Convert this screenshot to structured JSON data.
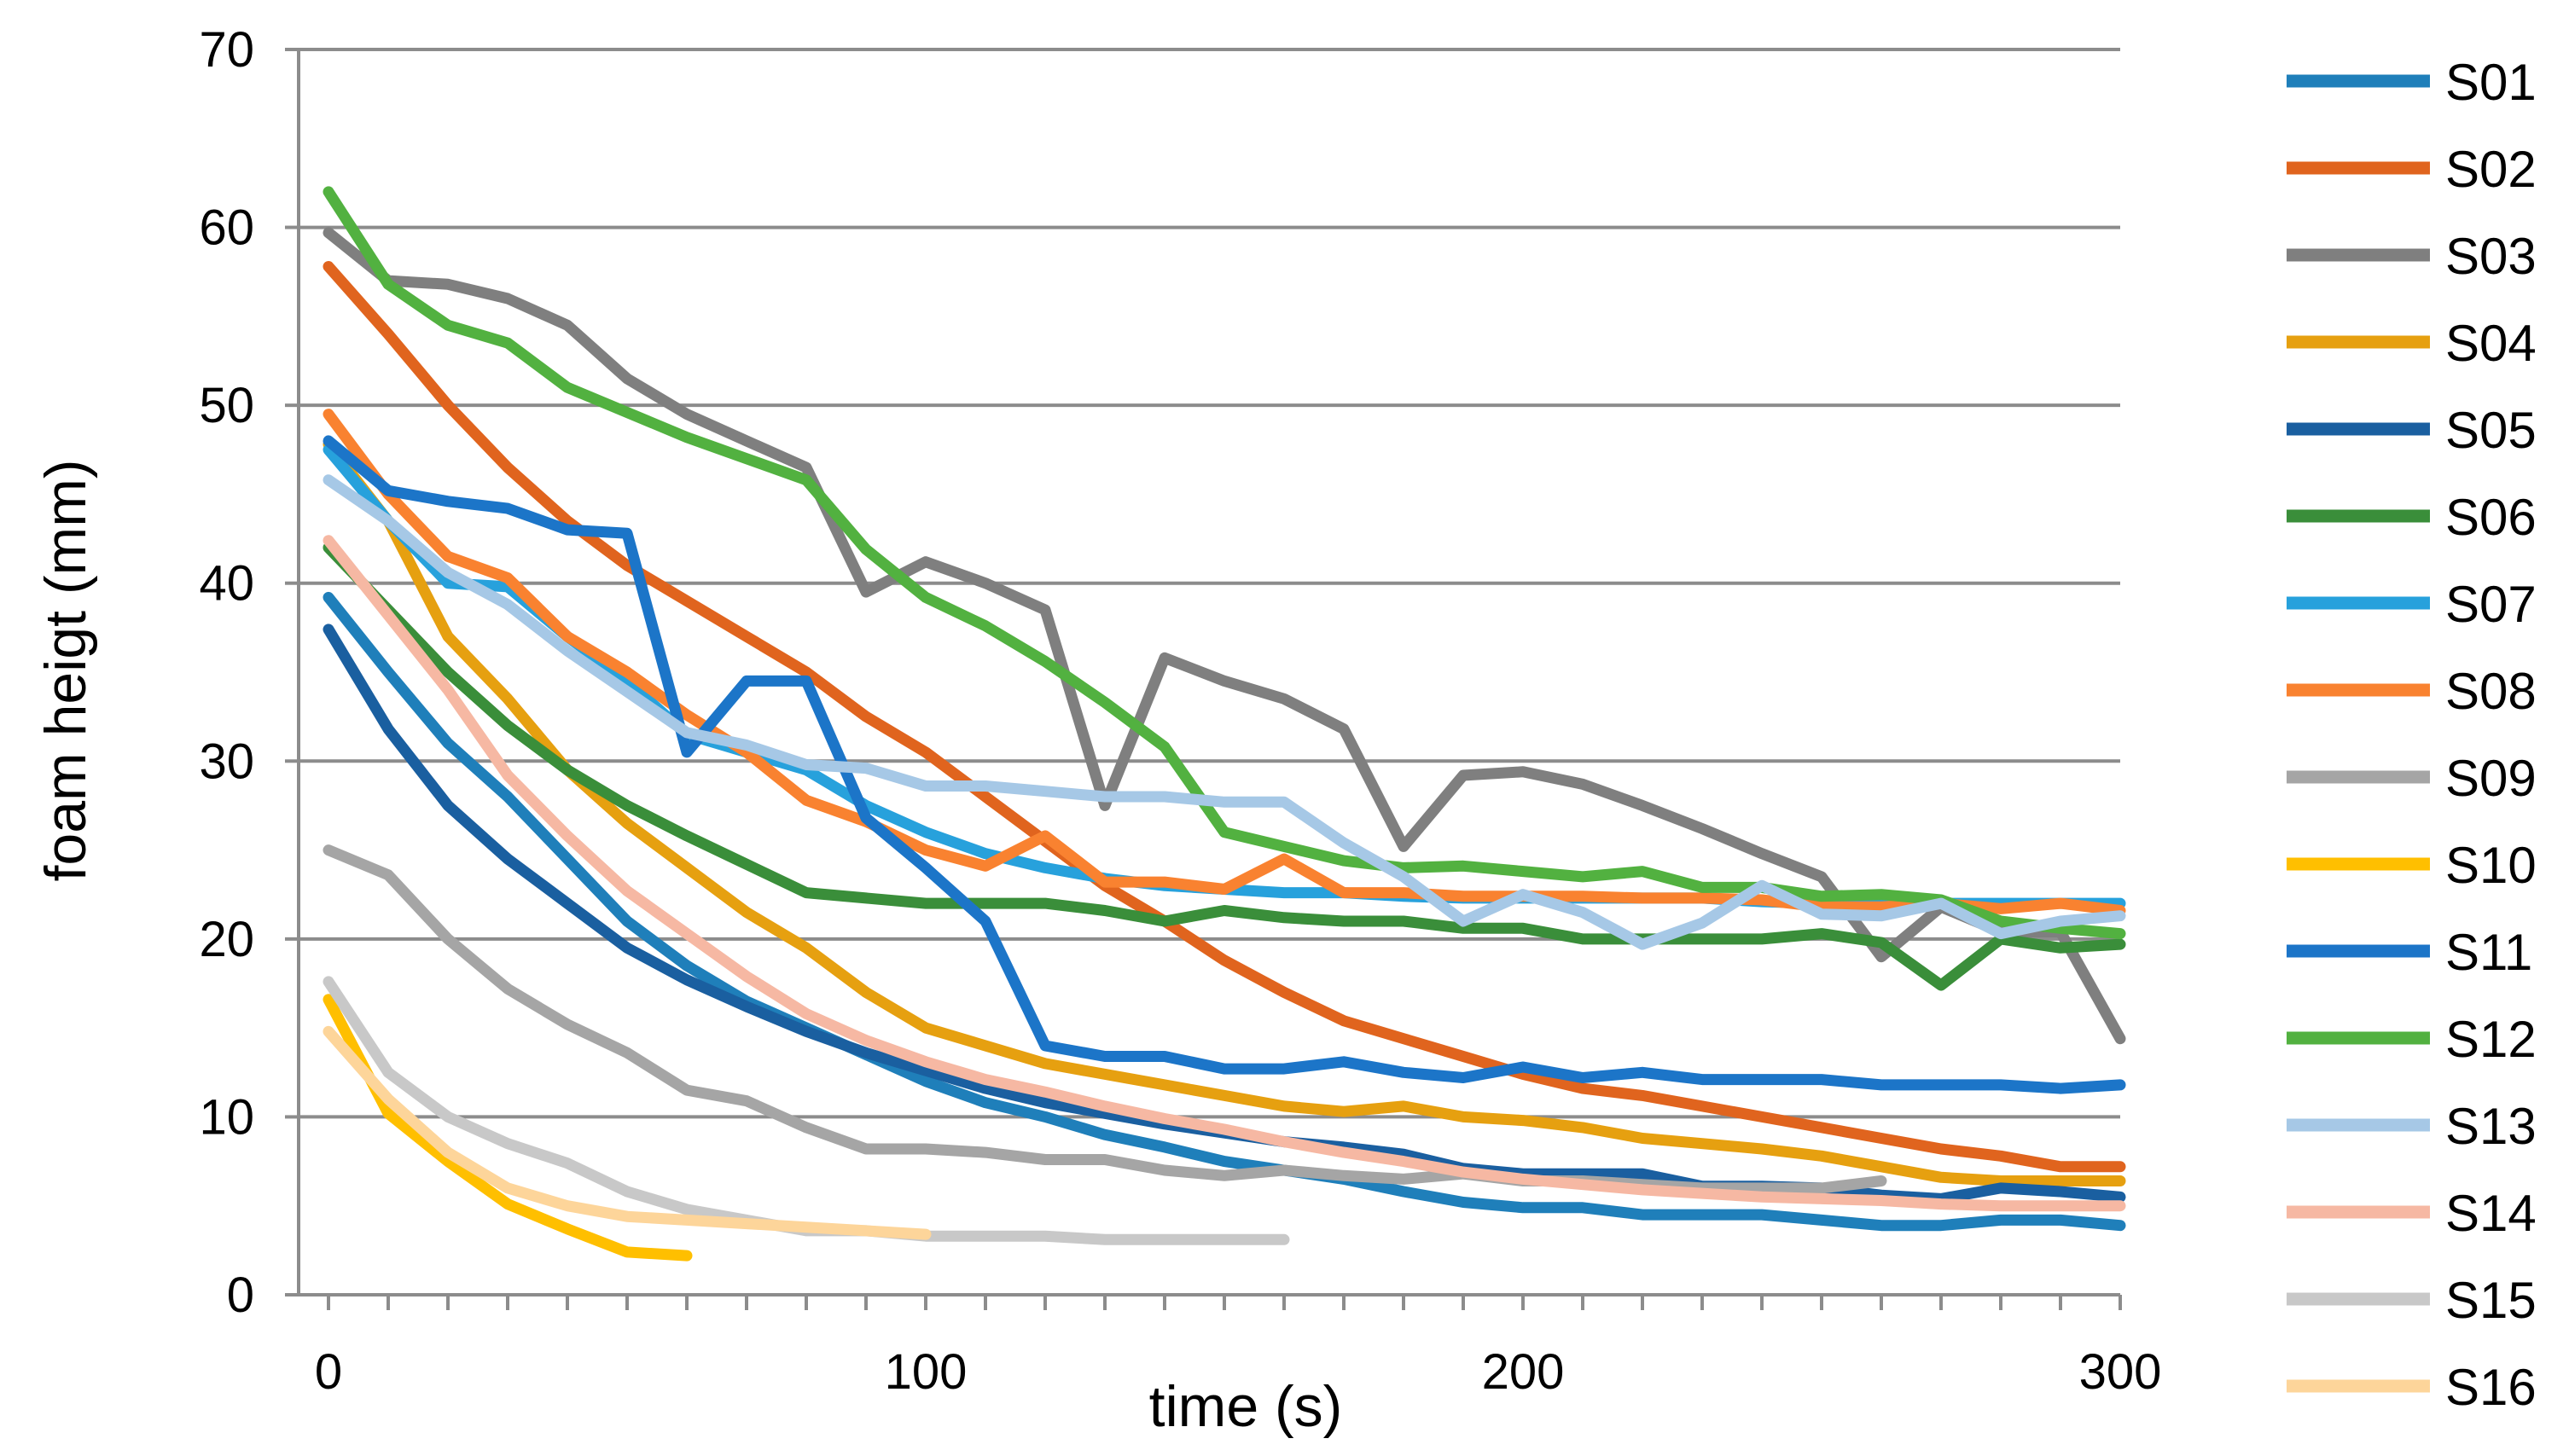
{
  "chart_data": {
    "type": "line",
    "title": "",
    "xlabel": "time (s)",
    "ylabel": "foam heigt (mm)",
    "xlim": [
      -5,
      300
    ],
    "ylim": [
      0,
      70
    ],
    "xticks": [
      0,
      100,
      200,
      300
    ],
    "yticks": [
      0,
      10,
      20,
      30,
      40,
      50,
      60,
      70
    ],
    "grid": "horizontal",
    "legend": "right",
    "series": [
      {
        "name": "S01",
        "color": "#1f7fba",
        "x": [
          0,
          10,
          20,
          30,
          40,
          50,
          60,
          70,
          80,
          90,
          100,
          110,
          120,
          130,
          140,
          150,
          160,
          170,
          180,
          190,
          200,
          210,
          220,
          230,
          240,
          250,
          260,
          270,
          280,
          290,
          300
        ],
        "y": [
          39.2,
          35,
          31,
          28,
          24.5,
          21,
          18.5,
          16.5,
          15,
          13.5,
          12,
          10.8,
          10,
          9,
          8.3,
          7.5,
          7,
          6.5,
          5.8,
          5.2,
          4.9,
          4.9,
          4.5,
          4.5,
          4.5,
          4.2,
          3.9,
          3.9,
          4.2,
          4.2,
          3.9
        ]
      },
      {
        "name": "S02",
        "color": "#e0641e",
        "x": [
          0,
          10,
          20,
          30,
          40,
          50,
          60,
          70,
          80,
          90,
          100,
          110,
          120,
          130,
          140,
          150,
          160,
          170,
          180,
          190,
          200,
          210,
          220,
          230,
          240,
          250,
          260,
          270,
          280,
          290,
          300
        ],
        "y": [
          57.8,
          54,
          50,
          46.5,
          43.5,
          41,
          39,
          37,
          35,
          32.5,
          30.5,
          28,
          25.5,
          23,
          21,
          18.8,
          17,
          15.4,
          14.4,
          13.4,
          12.4,
          11.6,
          11.2,
          10.6,
          10,
          9.4,
          8.8,
          8.2,
          7.8,
          7.2,
          7.2
        ]
      },
      {
        "name": "S03",
        "color": "#7f7f7f",
        "x": [
          0,
          10,
          20,
          30,
          40,
          50,
          60,
          70,
          80,
          90,
          100,
          110,
          120,
          130,
          140,
          150,
          160,
          170,
          180,
          190,
          200,
          210,
          220,
          230,
          240,
          250,
          260,
          270,
          280,
          290,
          300
        ],
        "y": [
          59.7,
          57,
          56.8,
          56,
          54.5,
          51.5,
          49.5,
          48,
          46.5,
          39.5,
          41.2,
          40,
          38.5,
          27.5,
          35.8,
          34.5,
          33.5,
          31.8,
          25.2,
          29.2,
          29.4,
          28.7,
          27.5,
          26.2,
          24.8,
          23.5,
          19,
          21.8,
          20.4,
          20.4,
          14.4
        ]
      },
      {
        "name": "S04",
        "color": "#e6a010",
        "x": [
          0,
          10,
          20,
          30,
          40,
          50,
          60,
          70,
          80,
          90,
          100,
          110,
          120,
          130,
          140,
          150,
          160,
          170,
          180,
          190,
          200,
          210,
          220,
          230,
          240,
          250,
          260,
          270,
          280,
          290,
          300
        ],
        "y": [
          47.8,
          43.5,
          37,
          33.5,
          29.5,
          26.5,
          24,
          21.5,
          19.5,
          17,
          15,
          14,
          13,
          12.4,
          11.8,
          11.2,
          10.6,
          10.3,
          10.6,
          10,
          9.8,
          9.4,
          8.8,
          8.5,
          8.2,
          7.8,
          7.2,
          6.6,
          6.4,
          6.4,
          6.4
        ]
      },
      {
        "name": "S05",
        "color": "#1a5fa0",
        "x": [
          0,
          10,
          20,
          30,
          40,
          50,
          60,
          70,
          80,
          90,
          100,
          110,
          120,
          130,
          140,
          150,
          160,
          170,
          180,
          190,
          200,
          210,
          220,
          230,
          240,
          250,
          260,
          270,
          280,
          290,
          300
        ],
        "y": [
          37.4,
          31.8,
          27.5,
          24.5,
          22,
          19.5,
          17.7,
          16.2,
          14.8,
          13.6,
          12.6,
          11.6,
          10.8,
          10.2,
          9.6,
          9.1,
          8.6,
          8.3,
          7.9,
          7.1,
          6.8,
          6.8,
          6.8,
          6.1,
          6.1,
          6,
          5.6,
          5.4,
          6,
          5.8,
          5.5
        ]
      },
      {
        "name": "S06",
        "color": "#3a8e3a",
        "x": [
          0,
          10,
          20,
          30,
          40,
          50,
          60,
          70,
          80,
          90,
          100,
          110,
          120,
          130,
          140,
          150,
          160,
          170,
          180,
          190,
          200,
          210,
          220,
          230,
          240,
          250,
          260,
          270,
          280,
          290,
          300
        ],
        "y": [
          42,
          38.5,
          35,
          32,
          29.5,
          27.5,
          25.8,
          24.2,
          22.6,
          22.3,
          22,
          22,
          22,
          21.6,
          21,
          21.6,
          21.2,
          21,
          21,
          20.6,
          20.6,
          20,
          20,
          20,
          20,
          20.3,
          19.8,
          17.4,
          20,
          19.5,
          19.7
        ]
      },
      {
        "name": "S07",
        "color": "#27a1dc",
        "x": [
          0,
          10,
          20,
          30,
          40,
          50,
          60,
          70,
          80,
          90,
          100,
          110,
          120,
          130,
          140,
          150,
          160,
          170,
          180,
          190,
          200,
          210,
          220,
          230,
          240,
          250,
          260,
          270,
          280,
          290,
          300
        ],
        "y": [
          47.5,
          43.5,
          40,
          39.8,
          37,
          34.5,
          31.5,
          30.5,
          29.5,
          27.5,
          26,
          24.8,
          24,
          23.4,
          23,
          22.8,
          22.6,
          22.6,
          22.4,
          22.3,
          22.3,
          22.3,
          22.3,
          22.3,
          22.1,
          22,
          22,
          22,
          22,
          22,
          22
        ]
      },
      {
        "name": "S08",
        "color": "#f98230",
        "x": [
          0,
          10,
          20,
          30,
          40,
          50,
          60,
          70,
          80,
          90,
          100,
          110,
          120,
          130,
          140,
          150,
          160,
          170,
          180,
          190,
          200,
          210,
          220,
          230,
          240,
          250,
          260,
          270,
          280,
          290,
          300
        ],
        "y": [
          49.5,
          45,
          41.5,
          40.3,
          37,
          35,
          32.6,
          30.5,
          27.8,
          26.6,
          25,
          24.1,
          25.8,
          23.2,
          23.2,
          22.8,
          24.5,
          22.6,
          22.6,
          22.4,
          22.4,
          22.4,
          22.3,
          22.3,
          22.2,
          21.8,
          21.8,
          22,
          21.7,
          22,
          21.6
        ]
      },
      {
        "name": "S09",
        "color": "#a5a5a5",
        "x": [
          0,
          10,
          20,
          30,
          40,
          50,
          60,
          70,
          80,
          90,
          100,
          110,
          120,
          130,
          140,
          150,
          160,
          170,
          180,
          190,
          200,
          210,
          220,
          230,
          240,
          250,
          260
        ],
        "y": [
          25,
          23.6,
          20,
          17.2,
          15.2,
          13.6,
          11.5,
          10.9,
          9.4,
          8.2,
          8.2,
          8,
          7.6,
          7.6,
          7,
          6.7,
          7,
          6.7,
          6.5,
          6.8,
          6.4,
          6.4,
          6.2,
          6,
          6,
          6,
          6.4
        ]
      },
      {
        "name": "S10",
        "color": "#ffbf00",
        "x": [
          0,
          10,
          20,
          30,
          40,
          50,
          60
        ],
        "y": [
          16.6,
          10.2,
          7.5,
          5.1,
          3.7,
          2.4,
          2.2
        ]
      },
      {
        "name": "S11",
        "color": "#1c75c8",
        "x": [
          0,
          10,
          20,
          30,
          40,
          50,
          60,
          70,
          80,
          90,
          100,
          110,
          120,
          130,
          140,
          150,
          160,
          170,
          180,
          190,
          200,
          210,
          220,
          230,
          240,
          250,
          260,
          270,
          280,
          290,
          300
        ],
        "y": [
          48,
          45.2,
          44.6,
          44.2,
          43,
          42.8,
          30.5,
          34.5,
          34.5,
          26.8,
          24,
          21,
          14,
          13.4,
          13.4,
          12.7,
          12.7,
          13.1,
          12.5,
          12.2,
          12.8,
          12.2,
          12.5,
          12.1,
          12.1,
          12.1,
          11.8,
          11.8,
          11.8,
          11.6,
          11.8
        ]
      },
      {
        "name": "S12",
        "color": "#52b140",
        "x": [
          0,
          10,
          20,
          30,
          40,
          50,
          60,
          70,
          80,
          90,
          100,
          110,
          120,
          130,
          140,
          150,
          160,
          170,
          180,
          190,
          200,
          210,
          220,
          230,
          240,
          250,
          260,
          270,
          280,
          290,
          300
        ],
        "y": [
          62,
          56.8,
          54.5,
          53.5,
          51,
          49.6,
          48.2,
          47,
          45.8,
          41.9,
          39.2,
          37.6,
          35.6,
          33.3,
          30.8,
          26,
          25.2,
          24.4,
          24,
          24.1,
          23.8,
          23.5,
          23.8,
          22.9,
          22.9,
          22.4,
          22.5,
          22.2,
          21,
          20.6,
          20.3
        ]
      },
      {
        "name": "S13",
        "color": "#a6c8e6",
        "x": [
          0,
          10,
          20,
          30,
          40,
          50,
          60,
          70,
          80,
          90,
          100,
          110,
          120,
          130,
          140,
          150,
          160,
          170,
          180,
          190,
          200,
          210,
          220,
          230,
          240,
          250,
          260,
          270,
          280,
          290,
          300
        ],
        "y": [
          45.8,
          43.5,
          40.6,
          38.8,
          36.2,
          33.9,
          31.6,
          30.9,
          29.8,
          29.6,
          28.6,
          28.6,
          28.3,
          28,
          28,
          27.7,
          27.7,
          25.4,
          23.5,
          21,
          22.5,
          21.5,
          19.7,
          20.9,
          23,
          21.4,
          21.3,
          22,
          20.3,
          21,
          21.3
        ]
      },
      {
        "name": "S14",
        "color": "#f6b8a3",
        "x": [
          0,
          10,
          20,
          30,
          40,
          50,
          60,
          70,
          80,
          90,
          100,
          110,
          120,
          130,
          140,
          150,
          160,
          170,
          180,
          190,
          200,
          210,
          220,
          230,
          240,
          250,
          260,
          270,
          280,
          290,
          300
        ],
        "y": [
          42.4,
          38.2,
          34,
          29.2,
          25.8,
          22.7,
          20.3,
          17.9,
          15.8,
          14.3,
          13.1,
          12.1,
          11.4,
          10.6,
          9.9,
          9.3,
          8.6,
          8,
          7.5,
          6.9,
          6.5,
          6.2,
          5.9,
          5.7,
          5.5,
          5.4,
          5.3,
          5.1,
          5,
          5,
          5
        ]
      },
      {
        "name": "S15",
        "color": "#c8c8c8",
        "x": [
          0,
          10,
          20,
          30,
          40,
          50,
          60,
          70,
          80,
          90,
          100,
          110,
          120,
          130,
          140,
          150,
          160
        ],
        "y": [
          17.6,
          12.5,
          10,
          8.5,
          7.4,
          5.8,
          4.8,
          4.2,
          3.6,
          3.6,
          3.3,
          3.3,
          3.3,
          3.1,
          3.1,
          3.1,
          3.1
        ]
      },
      {
        "name": "S16",
        "color": "#fdd59a",
        "x": [
          0,
          10,
          20,
          30,
          40,
          50,
          60,
          70,
          80,
          90,
          100
        ],
        "y": [
          14.8,
          11,
          8,
          6,
          5,
          4.4,
          4.2,
          4,
          3.8,
          3.6,
          3.4
        ]
      }
    ]
  }
}
